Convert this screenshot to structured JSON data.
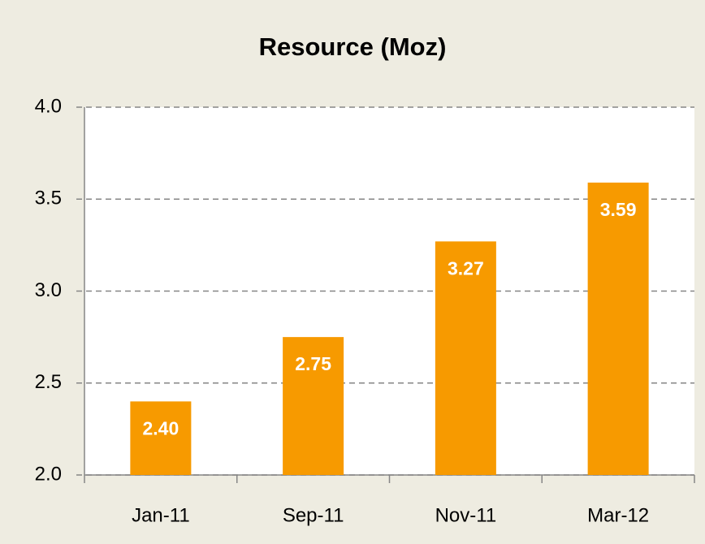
{
  "chart_data": {
    "type": "bar",
    "title": "Resource (Moz)",
    "categories": [
      "Jan-11",
      "Sep-11",
      "Nov-11",
      "Mar-12"
    ],
    "values": [
      2.4,
      2.75,
      3.27,
      3.59
    ],
    "value_labels": [
      "2.40",
      "2.75",
      "3.27",
      "3.59"
    ],
    "color": "#f79a00",
    "ylim": [
      2.0,
      4.0
    ],
    "yticks": [
      {
        "value": 2.0,
        "label": "2.0"
      },
      2.5,
      {
        "value": 3.0,
        "label": "3.0"
      },
      3.5,
      {
        "value": 4.0,
        "label": "4.0"
      }
    ],
    "grid": true
  }
}
